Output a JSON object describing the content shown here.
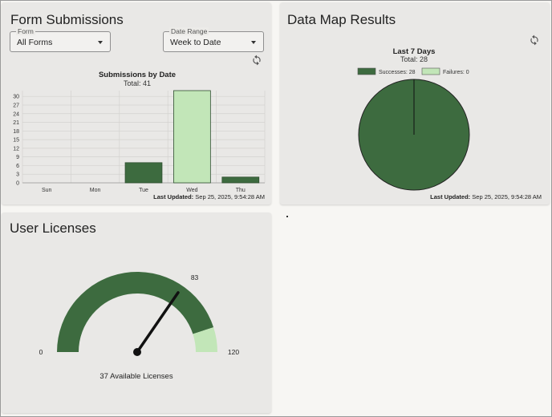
{
  "form_submissions": {
    "title": "Form Submissions",
    "form_select": {
      "legend": "Form",
      "value": "All Forms"
    },
    "date_select": {
      "legend": "Date Range",
      "value": "Week to Date"
    },
    "last_updated_label": "Last Updated:",
    "last_updated_value": "Sep 25, 2025, 9:54:28 AM"
  },
  "data_map": {
    "title": "Data Map Results",
    "last_updated_label": "Last Updated:",
    "last_updated_value": "Sep 25, 2025, 9:54:28 AM"
  },
  "user_licenses": {
    "title": "User Licenses",
    "available_text": "37 Available Licenses"
  },
  "colors": {
    "dark_green": "#3d6b3f",
    "light_green": "#c2e6b8"
  },
  "chart_data": [
    {
      "type": "bar",
      "title": "Submissions by Date",
      "subtitle": "Total: 41",
      "categories": [
        "Sun",
        "Mon",
        "Tue",
        "Wed",
        "Thu"
      ],
      "values": [
        0,
        0,
        7,
        32,
        2
      ],
      "colors": [
        "#3d6b3f",
        "#3d6b3f",
        "#3d6b3f",
        "#c2e6b8",
        "#3d6b3f"
      ],
      "yticks": [
        0,
        3,
        6,
        9,
        12,
        15,
        18,
        21,
        24,
        27,
        30
      ],
      "ylim": [
        0,
        32
      ],
      "grid": true
    },
    {
      "type": "pie",
      "title": "Last 7 Days",
      "subtitle": "Total: 28",
      "legend": [
        {
          "label": "Successes: 28",
          "color": "#3d6b3f"
        },
        {
          "label": "Failures: 0",
          "color": "#c2e6b8"
        }
      ],
      "values": [
        28,
        0
      ],
      "legend_position": "top"
    },
    {
      "type": "gauge",
      "min": 0,
      "max": 120,
      "value": 83,
      "segments": [
        {
          "from": 0,
          "to": 108,
          "color": "#3d6b3f"
        },
        {
          "from": 108,
          "to": 120,
          "color": "#c2e6b8"
        }
      ],
      "labels": {
        "min": "0",
        "max": "120",
        "value": "83"
      }
    }
  ]
}
